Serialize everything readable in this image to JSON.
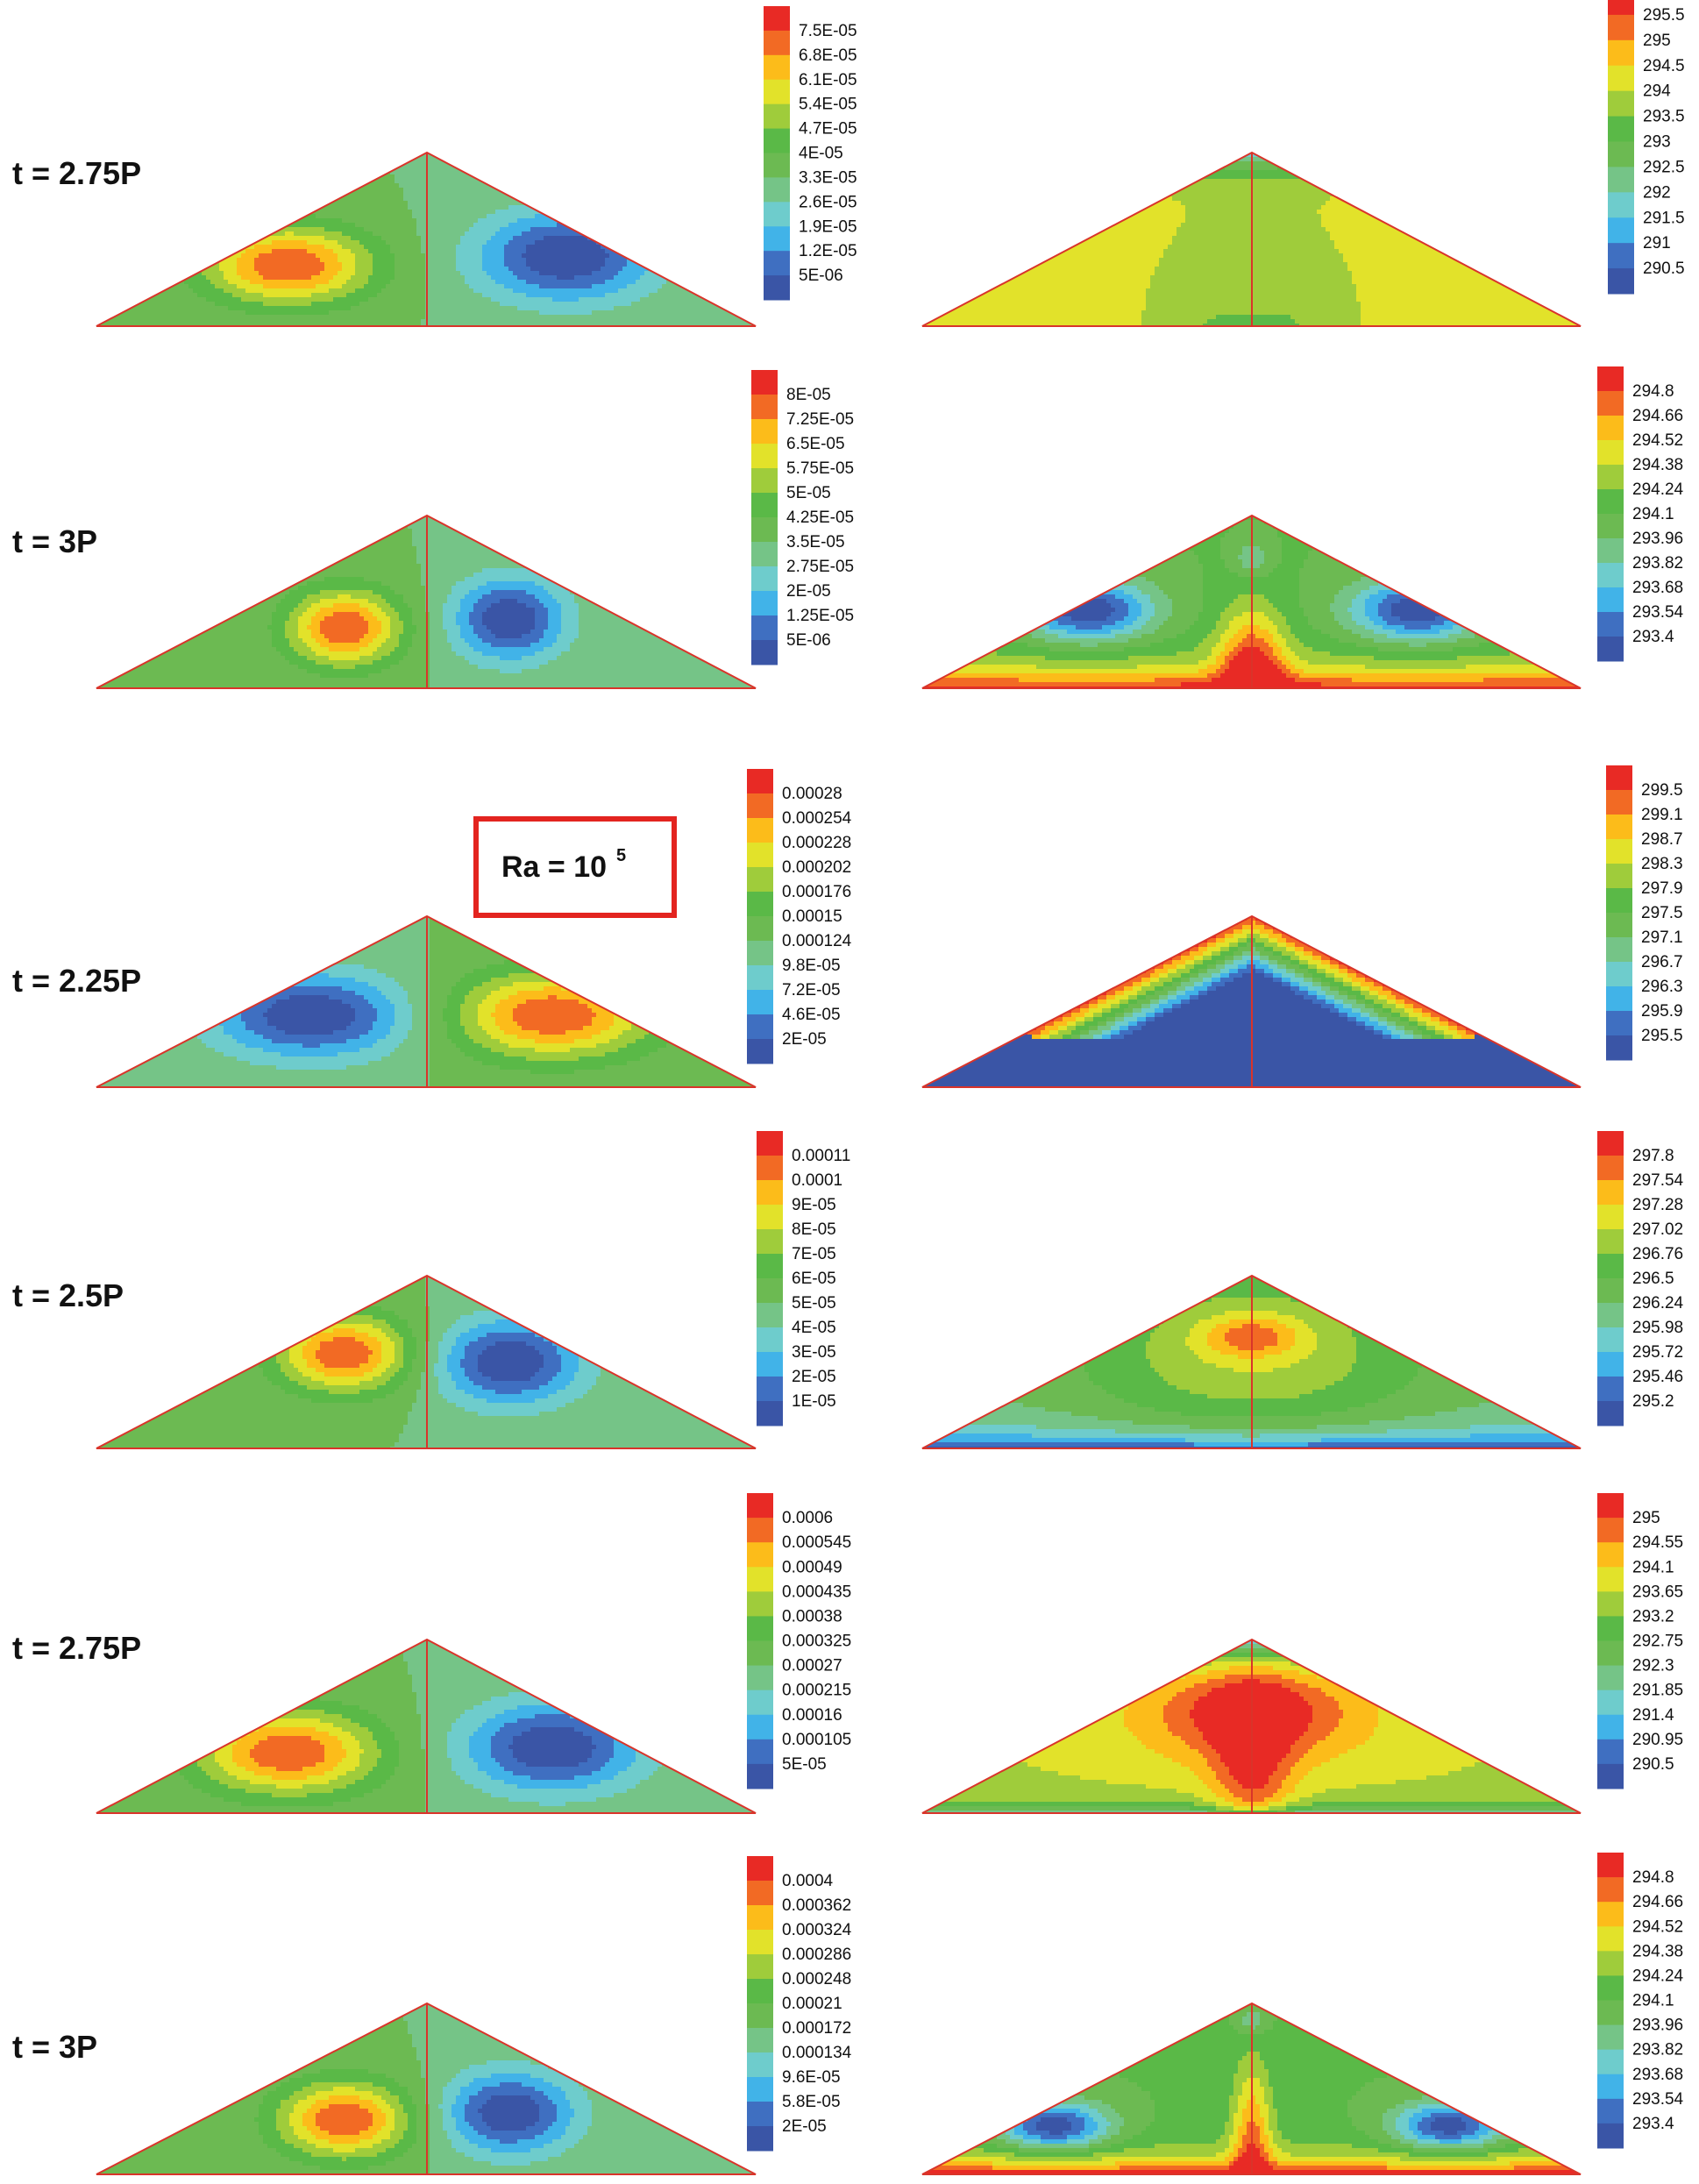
{
  "colors": [
    "#3a55a6",
    "#3f6fc1",
    "#41b3e8",
    "#6ecccc",
    "#75c487",
    "#6cba52",
    "#5ab947",
    "#9fcc3b",
    "#e2e22a",
    "#fcbc1a",
    "#f26a24",
    "#e82a25"
  ],
  "annotation": {
    "ra_base": "Ra = 10",
    "ra_exp": "5",
    "border_color": "#e3241f"
  },
  "rows": [
    {
      "label": "t = 2.75P",
      "stream": {
        "ticks": [
          "7.5E-05",
          "6.8E-05",
          "6.1E-05",
          "5.4E-05",
          "4.7E-05",
          "4E-05",
          "3.3E-05",
          "2.6E-05",
          "1.9E-05",
          "1.2E-05",
          "5E-06"
        ]
      },
      "temp": {
        "ticks": [
          "295.5",
          "295",
          "294.5",
          "294",
          "293.5",
          "293",
          "292.5",
          "292",
          "291.5",
          "291",
          "290.5"
        ]
      }
    },
    {
      "label": "t = 3P",
      "stream": {
        "ticks": [
          "8E-05",
          "7.25E-05",
          "6.5E-05",
          "5.75E-05",
          "5E-05",
          "4.25E-05",
          "3.5E-05",
          "2.75E-05",
          "2E-05",
          "1.25E-05",
          "5E-06"
        ]
      },
      "temp": {
        "ticks": [
          "294.8",
          "294.66",
          "294.52",
          "294.38",
          "294.24",
          "294.1",
          "293.96",
          "293.82",
          "293.68",
          "293.54",
          "293.4"
        ]
      }
    },
    {
      "label": "t = 2.25P",
      "stream": {
        "ticks": [
          "0.00028",
          "0.000254",
          "0.000228",
          "0.000202",
          "0.000176",
          "0.00015",
          "0.000124",
          "9.8E-05",
          "7.2E-05",
          "4.6E-05",
          "2E-05"
        ]
      },
      "temp": {
        "ticks": [
          "299.5",
          "299.1",
          "298.7",
          "298.3",
          "297.9",
          "297.5",
          "297.1",
          "296.7",
          "296.3",
          "295.9",
          "295.5"
        ]
      }
    },
    {
      "label": "t = 2.5P",
      "stream": {
        "ticks": [
          "0.00011",
          "0.0001",
          "9E-05",
          "8E-05",
          "7E-05",
          "6E-05",
          "5E-05",
          "4E-05",
          "3E-05",
          "2E-05",
          "1E-05"
        ]
      },
      "temp": {
        "ticks": [
          "297.8",
          "297.54",
          "297.28",
          "297.02",
          "296.76",
          "296.5",
          "296.24",
          "295.98",
          "295.72",
          "295.46",
          "295.2"
        ]
      }
    },
    {
      "label": "t = 2.75P",
      "stream": {
        "ticks": [
          "0.0006",
          "0.000545",
          "0.00049",
          "0.000435",
          "0.00038",
          "0.000325",
          "0.00027",
          "0.000215",
          "0.00016",
          "0.000105",
          "5E-05"
        ]
      },
      "temp": {
        "ticks": [
          "295",
          "294.55",
          "294.1",
          "293.65",
          "293.2",
          "292.75",
          "292.3",
          "291.85",
          "291.4",
          "290.95",
          "290.5"
        ]
      }
    },
    {
      "label": "t = 3P",
      "stream": {
        "ticks": [
          "0.0004",
          "0.000362",
          "0.000324",
          "0.000286",
          "0.000248",
          "0.00021",
          "0.000172",
          "0.000134",
          "9.6E-05",
          "5.8E-05",
          "2E-05"
        ]
      },
      "temp": {
        "ticks": [
          "294.8",
          "294.66",
          "294.52",
          "294.38",
          "294.24",
          "294.1",
          "293.96",
          "293.82",
          "293.68",
          "293.54",
          "293.4"
        ]
      }
    }
  ]
}
